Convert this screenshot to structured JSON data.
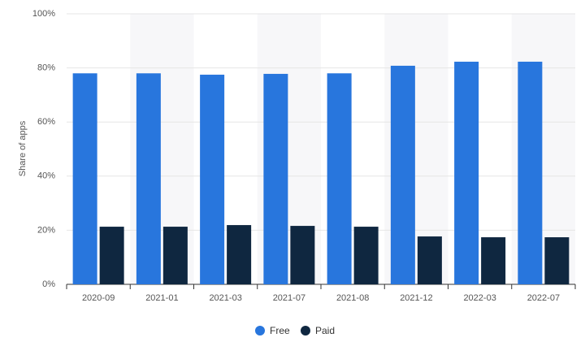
{
  "chart_data": {
    "type": "bar",
    "y_label": "Share of apps",
    "categories": [
      "2020-09",
      "2021-01",
      "2021-03",
      "2021-07",
      "2021-08",
      "2021-12",
      "2022-03",
      "2022-07"
    ],
    "series": [
      {
        "name": "Free",
        "color": "#2876dd",
        "values": [
          78,
          78,
          77.5,
          77.8,
          78,
          80.8,
          82.3,
          82.3
        ]
      },
      {
        "name": "Paid",
        "color": "#0f2740",
        "values": [
          21.3,
          21.3,
          21.9,
          21.6,
          21.3,
          17.7,
          17.4,
          17.4
        ]
      }
    ],
    "ylim": [
      0,
      100
    ],
    "yticks": [
      {
        "value": 0,
        "label": "0%"
      },
      {
        "value": 20,
        "label": "20%"
      },
      {
        "value": 40,
        "label": "40%"
      },
      {
        "value": 60,
        "label": "60%"
      },
      {
        "value": 80,
        "label": "80%"
      },
      {
        "value": 100,
        "label": "100%"
      }
    ],
    "grid": true,
    "legend": "bottom"
  }
}
